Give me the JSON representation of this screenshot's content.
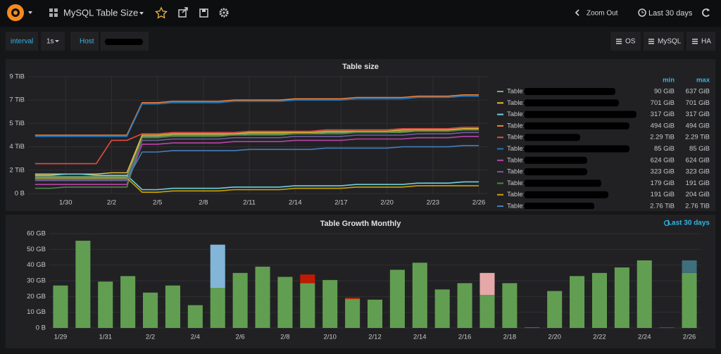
{
  "header": {
    "title": "MySQL Table Size",
    "zoom_out": "Zoom Out",
    "time_range": "Last 30 days"
  },
  "variables": {
    "interval_label": "interval",
    "interval_value": "1s",
    "host_label": "Host"
  },
  "links": [
    "OS",
    "MySQL",
    "HA"
  ],
  "chart_data": [
    {
      "type": "line",
      "title": "Table size",
      "categories": [
        null,
        null,
        "1/30",
        null,
        null,
        "2/2",
        null,
        null,
        "2/5",
        null,
        null,
        "2/8",
        null,
        null,
        "2/11",
        null,
        null,
        "2/14",
        null,
        null,
        "2/17",
        null,
        null,
        "2/20",
        null,
        null,
        "2/23",
        null,
        null,
        "2/26"
      ],
      "ylim": [
        0,
        9
      ],
      "yticks": [
        {
          "value": 0,
          "label": "0 B"
        },
        {
          "value": 1.8,
          "label": "2 TiB"
        },
        {
          "value": 3.6,
          "label": "4 TiB"
        },
        {
          "value": 5.4,
          "label": "5 TiB"
        },
        {
          "value": 7.2,
          "label": "7 TiB"
        },
        {
          "value": 9,
          "label": "9 TiB"
        }
      ],
      "grid": true,
      "legend_columns": [
        "min",
        "max"
      ],
      "series": [
        {
          "name": "Table:",
          "color": "#7eb26d",
          "min": "90 GiB",
          "max": "637 GiB",
          "values": [
            1.3,
            1.3,
            1.3,
            1.3,
            1.3,
            1.3,
            1.3,
            4.4,
            4.4,
            4.5,
            4.5,
            4.5,
            4.5,
            4.5,
            4.6,
            4.6,
            4.6,
            4.6,
            4.6,
            4.7,
            4.7,
            4.7,
            4.7,
            4.7,
            4.8,
            4.8,
            4.8,
            4.8,
            4.9,
            4.9
          ]
        },
        {
          "name": "Table:",
          "color": "#eab839",
          "min": "701 GiB",
          "max": "701 GiB",
          "values": [
            1.5,
            1.5,
            1.5,
            1.5,
            1.5,
            1.6,
            1.6,
            4.5,
            4.5,
            4.6,
            4.6,
            4.6,
            4.6,
            4.6,
            4.7,
            4.7,
            4.7,
            4.7,
            4.7,
            4.8,
            4.8,
            4.8,
            4.8,
            4.8,
            4.9,
            4.9,
            4.9,
            4.9,
            5.0,
            5.0
          ]
        },
        {
          "name": "Table:",
          "color": "#6ed0e0",
          "min": "317 GiB",
          "max": "317 GiB",
          "values": [
            1.4,
            1.4,
            1.5,
            1.5,
            1.4,
            1.4,
            1.4,
            0.3,
            0.3,
            0.4,
            0.4,
            0.4,
            0.4,
            0.5,
            0.5,
            0.5,
            0.5,
            0.6,
            0.6,
            0.6,
            0.6,
            0.7,
            0.7,
            0.7,
            0.7,
            0.8,
            0.8,
            0.8,
            0.9,
            0.9
          ]
        },
        {
          "name": "Table:",
          "color": "#ef843c",
          "min": "494 GiB",
          "max": "494 GiB",
          "values": [
            4.5,
            4.5,
            4.5,
            4.5,
            4.5,
            4.5,
            4.5,
            7.0,
            7.0,
            7.1,
            7.1,
            7.1,
            7.1,
            7.2,
            7.2,
            7.2,
            7.2,
            7.3,
            7.3,
            7.3,
            7.3,
            7.4,
            7.4,
            7.4,
            7.4,
            7.5,
            7.5,
            7.5,
            7.6,
            7.6
          ]
        },
        {
          "name": "Table:",
          "color": "#e24d42",
          "min": "2.29 TiB",
          "max": "2.29 TiB",
          "values": [
            2.3,
            2.3,
            2.3,
            2.3,
            2.3,
            4.1,
            4.1,
            4.6,
            4.6,
            4.7,
            4.7,
            4.7,
            4.7,
            4.7,
            4.8,
            4.8,
            4.8,
            4.8,
            4.8,
            4.9,
            4.9,
            4.9,
            4.9,
            4.9,
            5.0,
            5.0,
            5.0,
            5.0,
            5.1,
            5.1
          ]
        },
        {
          "name": "Table:",
          "color": "#1f78c1",
          "min": "85 GiB",
          "max": "85 GiB",
          "values": [
            4.4,
            4.4,
            4.4,
            4.4,
            4.4,
            4.4,
            4.4,
            6.9,
            6.9,
            7.0,
            7.0,
            7.0,
            7.0,
            7.1,
            7.1,
            7.1,
            7.1,
            7.2,
            7.2,
            7.2,
            7.2,
            7.3,
            7.3,
            7.3,
            7.3,
            7.4,
            7.4,
            7.4,
            7.5,
            7.5
          ]
        },
        {
          "name": "Table:",
          "color": "#ba43a9",
          "min": "624 GiB",
          "max": "624 GiB",
          "values": [
            0.7,
            0.7,
            0.7,
            0.7,
            0.7,
            0.7,
            0.7,
            3.8,
            3.8,
            3.9,
            3.9,
            3.9,
            3.9,
            4.0,
            4.0,
            4.0,
            4.0,
            4.1,
            4.1,
            4.1,
            4.1,
            4.2,
            4.2,
            4.2,
            4.2,
            4.3,
            4.3,
            4.3,
            4.4,
            4.4
          ]
        },
        {
          "name": "Table:",
          "color": "#705da0",
          "min": "323 GiB",
          "max": "323 GiB",
          "values": [
            1.0,
            1.0,
            1.0,
            1.0,
            1.0,
            1.0,
            1.0,
            4.1,
            4.1,
            4.2,
            4.2,
            4.2,
            4.2,
            4.3,
            4.3,
            4.3,
            4.3,
            4.4,
            4.4,
            4.4,
            4.4,
            4.5,
            4.5,
            4.5,
            4.5,
            4.6,
            4.6,
            4.6,
            4.7,
            4.7
          ]
        },
        {
          "name": "Table:",
          "color": "#508642",
          "min": "179 GiB",
          "max": "191 GiB",
          "values": [
            0.4,
            0.4,
            0.5,
            0.5,
            0.5,
            0.5,
            0.5,
            4.3,
            4.3,
            4.4,
            4.4,
            4.4,
            4.4,
            4.5,
            4.5,
            4.5,
            4.5,
            4.6,
            4.6,
            4.6,
            4.6,
            4.7,
            4.7,
            4.7,
            4.7,
            4.8,
            4.8,
            4.8,
            4.9,
            4.9
          ]
        },
        {
          "name": "Table:",
          "color": "#cca300",
          "min": "191 GiB",
          "max": "204 GiB",
          "values": [
            1.2,
            1.2,
            1.2,
            1.2,
            1.2,
            1.2,
            1.2,
            0.1,
            0.1,
            0.2,
            0.2,
            0.2,
            0.2,
            0.3,
            0.3,
            0.3,
            0.3,
            0.4,
            0.4,
            0.4,
            0.4,
            0.5,
            0.5,
            0.5,
            0.5,
            0.6,
            0.6,
            0.6,
            0.6,
            0.6
          ]
        },
        {
          "name": "Table:",
          "color": "#447ebc",
          "min": "2.76 TiB",
          "max": "2.76 TiB",
          "values": [
            1.1,
            1.1,
            1.1,
            1.1,
            1.1,
            1.1,
            1.1,
            3.2,
            3.2,
            3.3,
            3.3,
            3.3,
            3.3,
            3.3,
            3.4,
            3.4,
            3.4,
            3.4,
            3.4,
            3.5,
            3.5,
            3.5,
            3.5,
            3.5,
            3.6,
            3.6,
            3.6,
            3.6,
            3.7,
            3.7
          ]
        }
      ]
    },
    {
      "type": "bar",
      "title": "Table Growth Monthly",
      "time_range": "Last 30 days",
      "stacked": true,
      "categories": [
        "1/29",
        null,
        "1/31",
        null,
        "2/2",
        null,
        "2/4",
        null,
        "2/6",
        null,
        "2/8",
        null,
        "2/10",
        null,
        "2/12",
        null,
        "2/14",
        null,
        "2/16",
        null,
        "2/18",
        null,
        "2/20",
        null,
        "2/22",
        null,
        "2/24",
        null,
        "2/26"
      ],
      "ylim": [
        0,
        60
      ],
      "yticks": [
        {
          "value": 0,
          "label": "0 B"
        },
        {
          "value": 10,
          "label": "10 GB"
        },
        {
          "value": 20,
          "label": "20 GB"
        },
        {
          "value": 30,
          "label": "30 GB"
        },
        {
          "value": 40,
          "label": "40 GB"
        },
        {
          "value": 50,
          "label": "50 GB"
        },
        {
          "value": 60,
          "label": "60 GB"
        }
      ],
      "grid": true,
      "series": [
        {
          "color": "#629e51",
          "values": [
            27,
            55.5,
            29.5,
            33,
            22.5,
            27,
            14.5,
            25.5,
            35,
            39,
            32.5,
            28.5,
            30.5,
            18.5,
            18,
            37,
            41.5,
            24.5,
            28.5,
            21,
            28.5,
            0.3,
            23.5,
            33,
            35,
            38.5,
            43,
            0.2,
            35
          ]
        },
        {
          "color": "#82b5d8",
          "values": [
            null,
            null,
            null,
            null,
            null,
            null,
            null,
            27.5,
            null,
            null,
            null,
            null,
            null,
            null,
            null,
            null,
            null,
            null,
            null,
            null,
            null,
            null,
            null,
            null,
            null,
            null,
            null,
            null,
            null
          ]
        },
        {
          "color": "#bf1b00",
          "values": [
            null,
            null,
            null,
            null,
            null,
            null,
            null,
            null,
            null,
            null,
            null,
            5.5,
            null,
            0.8,
            null,
            null,
            null,
            null,
            null,
            null,
            null,
            null,
            null,
            null,
            null,
            null,
            null,
            null,
            null
          ]
        },
        {
          "color": "#e5a8a8",
          "values": [
            null,
            null,
            null,
            null,
            null,
            null,
            null,
            null,
            null,
            null,
            null,
            null,
            null,
            null,
            null,
            null,
            null,
            null,
            null,
            14,
            null,
            null,
            null,
            null,
            null,
            null,
            null,
            null,
            null
          ]
        },
        {
          "color": "#3f6e7d",
          "values": [
            null,
            null,
            null,
            null,
            null,
            null,
            null,
            null,
            null,
            null,
            null,
            null,
            null,
            null,
            null,
            null,
            null,
            null,
            null,
            null,
            null,
            null,
            null,
            null,
            null,
            null,
            null,
            null,
            8
          ]
        }
      ]
    }
  ]
}
